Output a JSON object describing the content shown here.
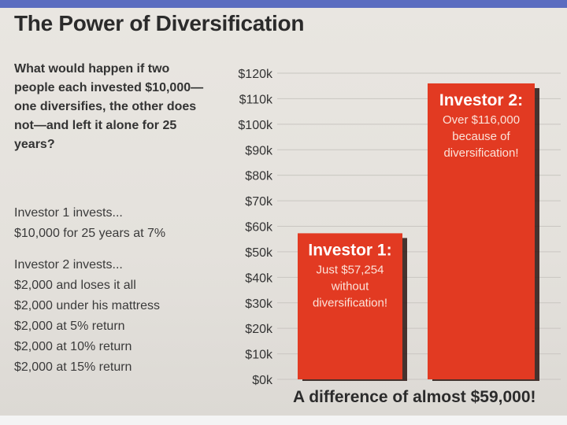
{
  "title": "The Power of Diversification",
  "question": "What would happen if two people each invested $10,000—one diversifies, the other does not—and left it alone for 25 years?",
  "investor1": {
    "heading": "Investor 1 invests...",
    "lines": [
      "$10,000 for 25 years at 7%"
    ]
  },
  "investor2": {
    "heading": "Investor 2 invests...",
    "lines": [
      "$2,000 and loses it all",
      "$2,000 under his mattress",
      "$2,000 at 5% return",
      "$2,000 at 10% return",
      "$2,000 at 15% return"
    ]
  },
  "chart_data": {
    "type": "bar",
    "categories": [
      "Investor 1:",
      "Investor 2:"
    ],
    "values": [
      57254,
      116000
    ],
    "bar_notes": [
      [
        "Just $57,254",
        "without",
        "diversification!"
      ],
      [
        "Over $116,000",
        "because of",
        "diversification!"
      ]
    ],
    "yticks": [
      "$0k",
      "$10k",
      "$20k",
      "$30k",
      "$40k",
      "$50k",
      "$60k",
      "$70k",
      "$80k",
      "$90k",
      "$100k",
      "$110k",
      "$120k"
    ],
    "ylim": [
      0,
      120000
    ],
    "grid": true,
    "bar_color": "#e23a22",
    "annotation": "A difference of almost $59,000!"
  }
}
